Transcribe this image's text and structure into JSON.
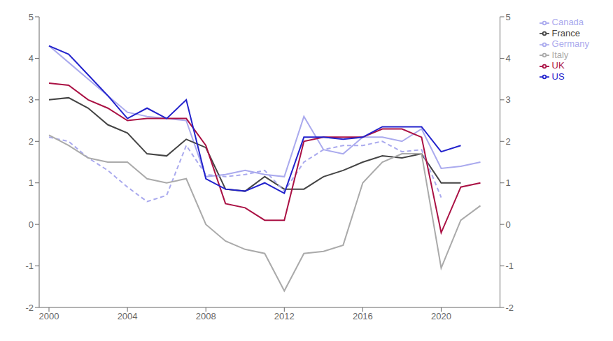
{
  "chart_data": {
    "type": "line",
    "x": [
      2000,
      2001,
      2002,
      2003,
      2004,
      2005,
      2006,
      2007,
      2008,
      2009,
      2010,
      2011,
      2012,
      2013,
      2014,
      2015,
      2016,
      2017,
      2018,
      2019,
      2020,
      2021,
      2022
    ],
    "series": [
      {
        "name": "Canada",
        "color": "#aaaaee",
        "line_style": "solid",
        "values": [
          4.3,
          3.9,
          3.5,
          3.1,
          2.7,
          2.6,
          2.55,
          2.5,
          1.15,
          1.2,
          1.3,
          1.2,
          1.15,
          2.6,
          1.8,
          1.7,
          2.1,
          2.1,
          2.0,
          2.3,
          1.35,
          1.4,
          1.5
        ]
      },
      {
        "name": "France",
        "color": "#444444",
        "line_style": "solid",
        "values": [
          3.0,
          3.05,
          2.8,
          2.4,
          2.2,
          1.7,
          1.65,
          2.05,
          1.85,
          0.85,
          0.8,
          1.15,
          0.85,
          0.85,
          1.15,
          1.3,
          1.5,
          1.65,
          1.6,
          1.7,
          1.0,
          1.0,
          null
        ]
      },
      {
        "name": "Germany",
        "color": "#aaaaee",
        "line_style": "dashed",
        "values": [
          2.1,
          2.0,
          1.6,
          1.3,
          0.9,
          0.55,
          0.7,
          1.9,
          1.2,
          1.15,
          1.2,
          1.3,
          0.8,
          1.5,
          1.8,
          1.9,
          1.9,
          2.0,
          1.75,
          1.8,
          0.65,
          null,
          null
        ]
      },
      {
        "name": "Italy",
        "color": "#aaaaaa",
        "line_style": "solid",
        "values": [
          2.15,
          1.9,
          1.6,
          1.5,
          1.5,
          1.1,
          1.0,
          1.1,
          0.0,
          -0.4,
          -0.6,
          -0.7,
          -1.6,
          -0.7,
          -0.65,
          -0.5,
          1.0,
          1.5,
          1.7,
          1.7,
          -1.05,
          0.1,
          0.45
        ]
      },
      {
        "name": "UK",
        "color": "#aa1144",
        "line_style": "solid",
        "values": [
          3.4,
          3.35,
          3.0,
          2.8,
          2.5,
          2.55,
          2.55,
          2.55,
          1.9,
          0.5,
          0.4,
          0.1,
          0.1,
          2.0,
          2.1,
          2.1,
          2.1,
          2.3,
          2.3,
          2.1,
          -0.2,
          0.9,
          1.0
        ]
      },
      {
        "name": "US",
        "color": "#2222cc",
        "line_style": "solid",
        "values": [
          4.3,
          4.1,
          3.6,
          3.1,
          2.55,
          2.8,
          2.55,
          3.0,
          1.1,
          0.85,
          0.8,
          1.0,
          0.75,
          2.1,
          2.1,
          2.05,
          2.1,
          2.35,
          2.35,
          2.35,
          1.75,
          1.9,
          null
        ]
      }
    ],
    "xlim": [
      1999.5,
      2023.0
    ],
    "xticks": [
      2000,
      2004,
      2008,
      2012,
      2016,
      2020
    ],
    "ylim": [
      -2,
      5
    ],
    "yticks": [
      -2,
      -1,
      0,
      1,
      2,
      3,
      4,
      5
    ],
    "y2lim": [
      -2,
      5
    ],
    "y2ticks": [
      -2,
      -1,
      0,
      1,
      2,
      3,
      4,
      5
    ],
    "grid": false,
    "legend": "upper right"
  }
}
